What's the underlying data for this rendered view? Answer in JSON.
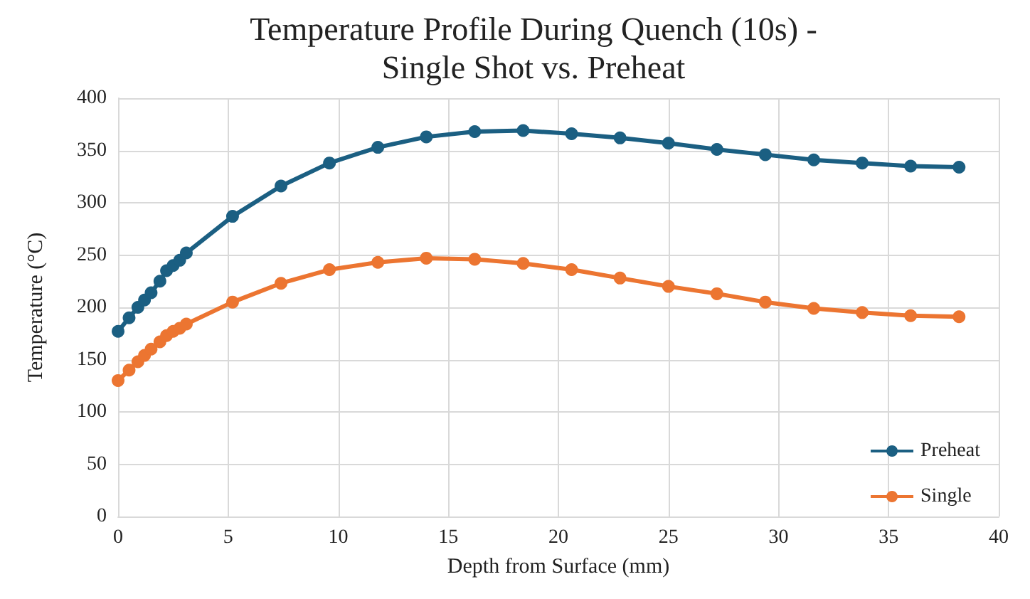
{
  "chart_data": {
    "type": "line",
    "title": "Temperature Profile During Quench (10s) -\nSingle Shot vs. Preheat",
    "xlabel": "Depth from Surface (mm)",
    "ylabel": "Temperature (°C)",
    "x": [
      0,
      0.5,
      0.9,
      1.2,
      1.5,
      1.9,
      2.2,
      2.5,
      2.8,
      3.1,
      5.2,
      7.4,
      9.6,
      11.8,
      14,
      16.2,
      18.4,
      20.6,
      22.8,
      25,
      27.2,
      29.4,
      31.6,
      33.8,
      36,
      38.2
    ],
    "series": [
      {
        "name": "Preheat",
        "color": "#1b5f82",
        "values": [
          177,
          190,
          200,
          207,
          214,
          225,
          235,
          240,
          245,
          252,
          287,
          316,
          338,
          353,
          363,
          368,
          369,
          366,
          362,
          357,
          351,
          346,
          341,
          338,
          335,
          334
        ]
      },
      {
        "name": "Single",
        "color": "#ec7531",
        "values": [
          130,
          140,
          148,
          154,
          160,
          167,
          173,
          177,
          180,
          184,
          205,
          223,
          236,
          243,
          247,
          246,
          242,
          236,
          228,
          220,
          213,
          205,
          199,
          195,
          192,
          191
        ]
      }
    ],
    "xlim": [
      0,
      40
    ],
    "xticks": [
      0,
      5,
      10,
      15,
      20,
      25,
      30,
      35,
      40
    ],
    "ylim": [
      0,
      400
    ],
    "yticks": [
      0,
      50,
      100,
      150,
      200,
      250,
      300,
      350,
      400
    ],
    "grid": true,
    "legend": "bottom right",
    "marker": "circle",
    "line_style": "solid"
  }
}
